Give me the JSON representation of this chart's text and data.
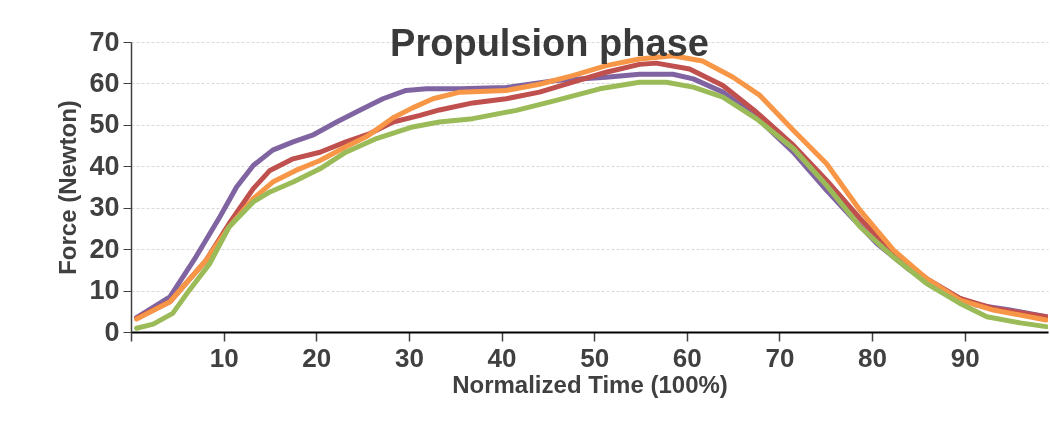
{
  "chart_data": {
    "type": "line",
    "title": "Propulsion phase",
    "xlabel": "Normalized Time (100%)",
    "ylabel": "Force (Newton)",
    "xlim": [
      0,
      99
    ],
    "xticks": [
      {
        "value": 0,
        "label": null
      },
      10,
      20,
      30,
      40,
      50,
      60,
      70,
      80,
      90
    ],
    "ylim": [
      0,
      70
    ],
    "yticks": [
      0,
      10,
      20,
      30,
      40,
      50,
      60,
      70
    ],
    "grid": "y",
    "legend": false,
    "line_style": "solid",
    "marker": "none",
    "series": [
      {
        "color": "#8064a2",
        "x": [
          0.6,
          4.2,
          7,
          9.6,
          11.4,
          13.2,
          15.3,
          17.5,
          19.6,
          22.2,
          24.7,
          27.2,
          29.7,
          31.9,
          35.5,
          40.5,
          45.9,
          51.3,
          54.9,
          58.5,
          60.7,
          63.9,
          67.5,
          71.5,
          75.1,
          77.6,
          80.5,
          84.1,
          87.7,
          91.3,
          94.9,
          98.8
        ],
        "values": [
          3.5,
          8.5,
          18.1,
          27.8,
          35,
          40.2,
          43.9,
          45.9,
          47.5,
          50.7,
          53.5,
          56.3,
          58.3,
          58.7,
          58.7,
          59,
          60.7,
          61.5,
          62.2,
          62.2,
          61.1,
          57.9,
          51.9,
          43.4,
          34.2,
          28.2,
          21.4,
          14.9,
          9.7,
          6.5,
          5.3,
          3.7
        ]
      },
      {
        "color": "#c0504d",
        "x": [
          0.6,
          4.2,
          8.1,
          10.6,
          13.2,
          15,
          17.5,
          20.4,
          23.2,
          25.8,
          28.3,
          31.2,
          33.3,
          36.9,
          40.5,
          44.1,
          47.7,
          51.3,
          54.9,
          56.7,
          60.3,
          63.9,
          67.5,
          71.5,
          75.1,
          78.7,
          82.3,
          85.9,
          89.5,
          93.1,
          98.8
        ],
        "values": [
          3.3,
          7.3,
          17.3,
          26.2,
          34.6,
          39,
          41.8,
          43.4,
          45.9,
          47.9,
          50.7,
          52.3,
          53.6,
          55.3,
          56.3,
          57.9,
          60.3,
          62.7,
          64.6,
          64.9,
          63.5,
          59.5,
          53.1,
          45.1,
          36.6,
          27.4,
          19,
          12.9,
          8.1,
          5.7,
          3.7
        ]
      },
      {
        "color": "#f79646",
        "x": [
          0.6,
          4.2,
          8.1,
          10.6,
          13.2,
          15.3,
          17.8,
          20.4,
          23.2,
          25.4,
          28.3,
          30.4,
          32.6,
          35.5,
          40.5,
          44.1,
          47.7,
          51.3,
          54.9,
          58.5,
          61.7,
          65,
          67.9,
          71.5,
          75.1,
          76.9,
          78.7,
          82.3,
          85.9,
          89.5,
          93.1,
          98.8
        ],
        "values": [
          3.1,
          7.3,
          17.3,
          25.4,
          32.2,
          36.2,
          39,
          41.4,
          44.7,
          47.1,
          51.7,
          54.1,
          56.3,
          57.9,
          58.3,
          59.8,
          61.9,
          64.3,
          65.9,
          66.7,
          65.4,
          61.5,
          57.1,
          48.7,
          40.6,
          35,
          29.4,
          19.8,
          12.9,
          7.7,
          5.3,
          2.9
        ]
      },
      {
        "color": "#9bbb59",
        "x": [
          0.6,
          2.4,
          4.5,
          6.3,
          8.5,
          10.6,
          13.2,
          15,
          17.5,
          20.4,
          23.2,
          26.5,
          30.4,
          33.3,
          36.9,
          41.6,
          45.9,
          50.6,
          54.9,
          57.8,
          60.7,
          63.9,
          67.5,
          71.5,
          75.1,
          78.7,
          82.3,
          85.9,
          89.5,
          92.4,
          96,
          98.8
        ],
        "values": [
          0.9,
          1.9,
          4.5,
          10.1,
          16.5,
          25.4,
          31.4,
          33.8,
          36.2,
          39.4,
          43.4,
          46.7,
          49.5,
          50.7,
          51.5,
          53.5,
          55.9,
          58.7,
          60.3,
          60.3,
          59.1,
          56.7,
          51.5,
          44.3,
          35.4,
          25.4,
          18.1,
          11.7,
          6.9,
          3.7,
          2.2,
          1.3
        ]
      }
    ]
  }
}
